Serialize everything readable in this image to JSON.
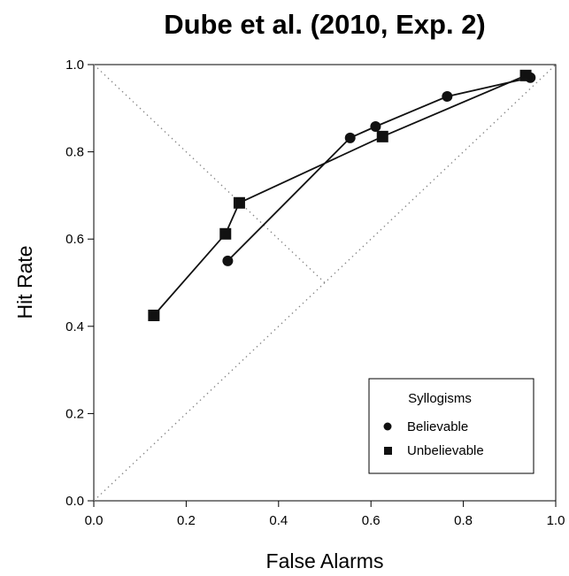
{
  "chart_data": {
    "type": "line",
    "title": "Dube et al. (2010, Exp. 2)",
    "xlabel": "False Alarms",
    "ylabel": "Hit Rate",
    "xlim": [
      0.0,
      1.0
    ],
    "ylim": [
      0.0,
      1.0
    ],
    "xticks": [
      "0.0",
      "0.2",
      "0.4",
      "0.6",
      "0.8",
      "1.0"
    ],
    "yticks": [
      "0.0",
      "0.2",
      "0.4",
      "0.6",
      "0.8",
      "1.0"
    ],
    "grid": false,
    "reference_lines": [
      "diagonal chance line",
      "minor diagonal"
    ],
    "legend": {
      "title": "Syllogisms",
      "placement": "bottom-right"
    },
    "series": [
      {
        "name": "Believable",
        "marker": "circle",
        "color": "#111111",
        "points": [
          {
            "x": 0.29,
            "y": 0.55
          },
          {
            "x": 0.555,
            "y": 0.832
          },
          {
            "x": 0.61,
            "y": 0.858
          },
          {
            "x": 0.765,
            "y": 0.927
          },
          {
            "x": 0.945,
            "y": 0.97
          }
        ]
      },
      {
        "name": "Unbelievable",
        "marker": "square",
        "color": "#111111",
        "points": [
          {
            "x": 0.13,
            "y": 0.425
          },
          {
            "x": 0.285,
            "y": 0.612
          },
          {
            "x": 0.315,
            "y": 0.683
          },
          {
            "x": 0.625,
            "y": 0.835
          },
          {
            "x": 0.935,
            "y": 0.975
          }
        ]
      }
    ]
  }
}
